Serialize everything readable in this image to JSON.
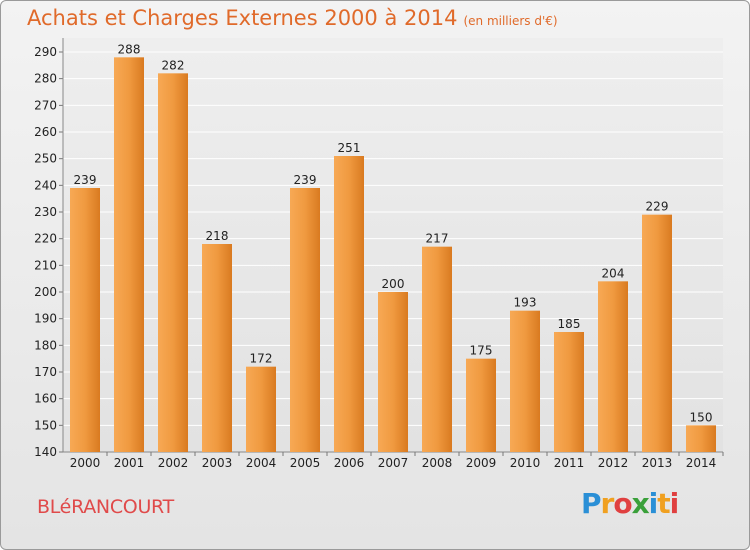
{
  "title": "Achats et Charges Externes 2000 à 2014",
  "unit": "(en milliers d'€)",
  "commune": "BLéRANCOURT",
  "logo": {
    "letters": [
      "P",
      "r",
      "o",
      "x",
      "i",
      "t",
      "i"
    ],
    "colors": [
      "#2a8fd6",
      "#f0a020",
      "#e04040",
      "#3aa03a",
      "#2a8fd6",
      "#f0a020",
      "#e04040"
    ]
  },
  "colors": {
    "bar": "#f0963a",
    "title": "#e06a2a",
    "commune": "#e04a4a"
  },
  "chart_data": {
    "type": "bar",
    "title": "Achats et Charges Externes 2000 à 2014",
    "subtitle": "(en milliers d'€)",
    "categories": [
      "2000",
      "2001",
      "2002",
      "2003",
      "2004",
      "2005",
      "2006",
      "2007",
      "2008",
      "2009",
      "2010",
      "2011",
      "2012",
      "2013",
      "2014"
    ],
    "values": [
      239,
      288,
      282,
      218,
      172,
      239,
      251,
      200,
      217,
      175,
      193,
      185,
      204,
      229,
      150
    ],
    "ylim": [
      140,
      290
    ],
    "yticks": [
      140,
      150,
      160,
      170,
      180,
      190,
      200,
      210,
      220,
      230,
      240,
      250,
      260,
      270,
      280,
      290
    ],
    "grid": true
  }
}
